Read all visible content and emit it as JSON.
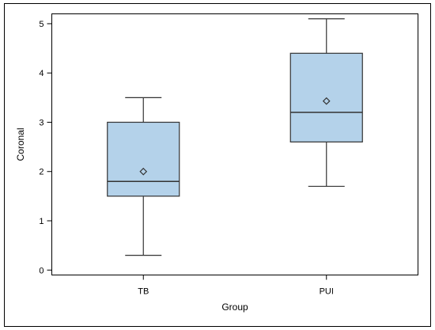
{
  "chart_data": {
    "type": "box",
    "title": "",
    "xlabel": "Group",
    "ylabel": "Coronal",
    "ylim": [
      -0.1,
      5.2
    ],
    "yticks": [
      0,
      1,
      2,
      3,
      4,
      5
    ],
    "categories": [
      "TB",
      "PUI"
    ],
    "series": [
      {
        "category": "TB",
        "min": 0.3,
        "q1": 1.5,
        "median": 1.8,
        "q3": 3.0,
        "max": 3.5,
        "mean": 2.0
      },
      {
        "category": "PUI",
        "min": 1.7,
        "q1": 2.6,
        "median": 3.2,
        "q3": 4.4,
        "max": 5.1,
        "mean": 3.43
      }
    ],
    "colors": {
      "box_fill": "#b4d2ea",
      "line": "#333333"
    },
    "grid": false,
    "legend": "none"
  }
}
